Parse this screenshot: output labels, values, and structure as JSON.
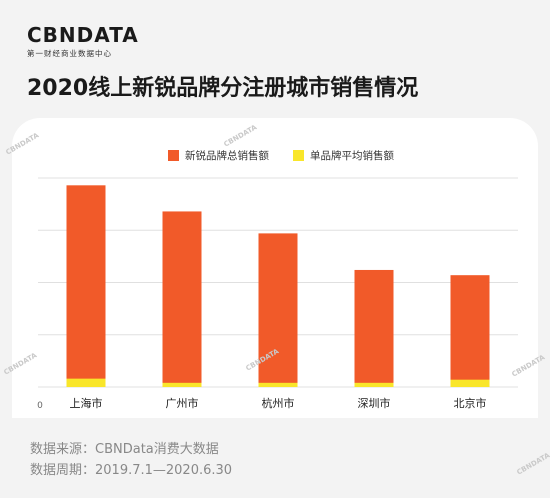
{
  "brand": {
    "logo": "CBNDATA",
    "tagline": "第一财经商业数据中心"
  },
  "title": "2020线上新锐品牌分注册城市销售情况",
  "source_line": "数据来源：CBNData消费大数据",
  "period_line": "数据周期：2019.7.1—2020.6.30",
  "colors": {
    "total": "#f15a29",
    "avg": "#f9e62a",
    "grid": "#e0e0e0"
  },
  "chart_data": {
    "type": "bar",
    "categories": [
      "上海市",
      "广州市",
      "杭州市",
      "深圳市",
      "北京市"
    ],
    "ylim": [
      0,
      100
    ],
    "y_tick_labels": [
      "0"
    ],
    "gridlines": true,
    "legend_position": "top-center",
    "series": [
      {
        "name": "新锐品牌总销售额",
        "values": [
          96.5,
          84,
          73.5,
          56,
          53.5
        ]
      },
      {
        "name": "单品牌平均销售额",
        "values": [
          4,
          2,
          2,
          2,
          3.5
        ]
      }
    ]
  }
}
